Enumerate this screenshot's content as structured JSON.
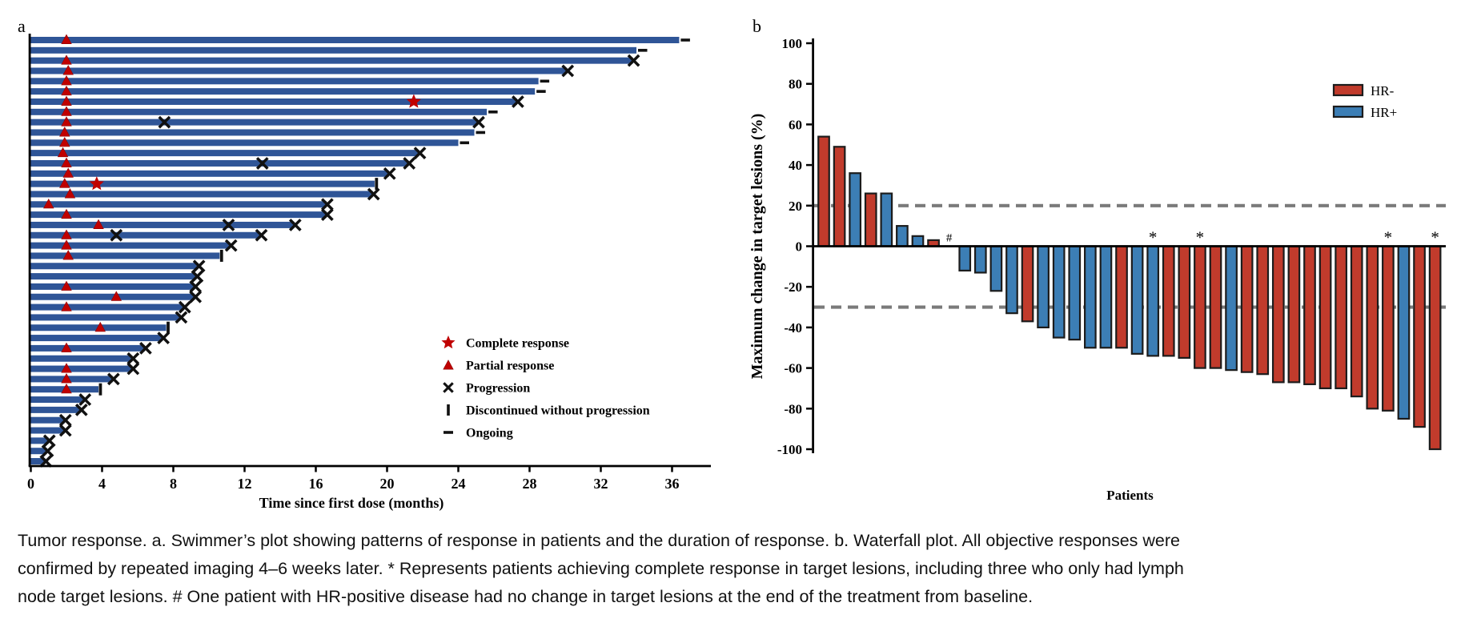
{
  "figure": {
    "panel_a_label": "a",
    "panel_b_label": "b",
    "caption_lines": [
      "Tumor response. a. Swimmer’s plot showing patterns of response in patients and the duration of response. b. Waterfall plot. All objective responses were",
      "confirmed by repeated imaging 4–6 weeks later. * Represents patients achieving complete response in target lesions, including three who only had lymph",
      "node target lesions. # One patient with HR-positive disease had no change in target lesions at the end of the treatment from baseline."
    ]
  },
  "colors": {
    "swimmer_bar": "#2f5597",
    "response_red": "#c00000",
    "hr_negative_red": "#c13b2c",
    "hr_positive_blue": "#3c7eb5",
    "marker_black": "#111111",
    "ref_line_gray": "#7a7a7a",
    "axis_black": "#000000"
  },
  "chart_data": [
    {
      "type": "swimmer",
      "xlabel": "Time since first dose (months)",
      "xticks": [
        0,
        4,
        8,
        12,
        16,
        20,
        24,
        28,
        32,
        36
      ],
      "xlim": [
        0,
        38
      ],
      "grid": false,
      "legend_position": "center-right",
      "legend": [
        {
          "marker": "star",
          "label": "Complete response"
        },
        {
          "marker": "triangle",
          "label": "Partial response"
        },
        {
          "marker": "x",
          "label": "Progression"
        },
        {
          "marker": "bar",
          "label": "Discontinued without progression"
        },
        {
          "marker": "dash",
          "label": "Ongoing"
        }
      ],
      "marker_meaning": {
        "star": "Complete response",
        "triangle": "Partial response",
        "x": "Progression",
        "bar": "Discontinued without progression",
        "dash": "Ongoing"
      },
      "patients": [
        {
          "duration": 36.4,
          "end": "ongoing",
          "triangles": [
            2.0
          ],
          "stars": [],
          "x_marks": []
        },
        {
          "duration": 34.0,
          "end": "ongoing",
          "triangles": [],
          "stars": [],
          "x_marks": []
        },
        {
          "duration": 33.8,
          "end": "x",
          "triangles": [
            2.0
          ],
          "stars": [],
          "x_marks": []
        },
        {
          "duration": 30.1,
          "end": "x",
          "triangles": [
            2.1
          ],
          "stars": [],
          "x_marks": []
        },
        {
          "duration": 28.5,
          "end": "ongoing",
          "triangles": [
            2.0
          ],
          "stars": [],
          "x_marks": []
        },
        {
          "duration": 28.3,
          "end": "ongoing",
          "triangles": [
            2.0
          ],
          "stars": [],
          "x_marks": []
        },
        {
          "duration": 27.3,
          "end": "x",
          "triangles": [
            2.0
          ],
          "stars": [
            21.5
          ],
          "x_marks": []
        },
        {
          "duration": 25.6,
          "end": "ongoing",
          "triangles": [
            2.0
          ],
          "stars": [],
          "x_marks": []
        },
        {
          "duration": 25.1,
          "end": "x",
          "triangles": [
            2.0
          ],
          "stars": [],
          "x_marks": [
            7.5
          ]
        },
        {
          "duration": 24.9,
          "end": "ongoing",
          "triangles": [
            1.9
          ],
          "stars": [],
          "x_marks": []
        },
        {
          "duration": 24.0,
          "end": "ongoing",
          "triangles": [
            1.9
          ],
          "stars": [],
          "x_marks": []
        },
        {
          "duration": 21.8,
          "end": "x",
          "triangles": [
            1.8
          ],
          "stars": [],
          "x_marks": []
        },
        {
          "duration": 21.2,
          "end": "x",
          "triangles": [
            2.0
          ],
          "stars": [],
          "x_marks": [
            13.0
          ]
        },
        {
          "duration": 20.1,
          "end": "x",
          "triangles": [
            2.1
          ],
          "stars": [],
          "x_marks": []
        },
        {
          "duration": 19.3,
          "end": "discontinued",
          "triangles": [
            1.9
          ],
          "stars": [
            3.7
          ],
          "x_marks": []
        },
        {
          "duration": 19.2,
          "end": "x",
          "triangles": [
            2.2
          ],
          "stars": [],
          "x_marks": []
        },
        {
          "duration": 16.6,
          "end": "x",
          "triangles": [
            1.0
          ],
          "stars": [],
          "x_marks": []
        },
        {
          "duration": 16.6,
          "end": "x",
          "triangles": [
            2.0
          ],
          "stars": [],
          "x_marks": []
        },
        {
          "duration": 14.8,
          "end": "x",
          "triangles": [
            3.8
          ],
          "stars": [],
          "x_marks": [
            11.1
          ]
        },
        {
          "duration": 12.9,
          "end": "x",
          "triangles": [
            2.0
          ],
          "stars": [],
          "x_marks": [
            4.8
          ]
        },
        {
          "duration": 11.2,
          "end": "x",
          "triangles": [
            2.0
          ],
          "stars": [],
          "x_marks": []
        },
        {
          "duration": 10.6,
          "end": "discontinued",
          "triangles": [
            2.1
          ],
          "stars": [],
          "x_marks": []
        },
        {
          "duration": 9.4,
          "end": "x",
          "triangles": [],
          "stars": [],
          "x_marks": []
        },
        {
          "duration": 9.3,
          "end": "x",
          "triangles": [],
          "stars": [],
          "x_marks": []
        },
        {
          "duration": 9.2,
          "end": "x",
          "triangles": [
            2.0
          ],
          "stars": [],
          "x_marks": []
        },
        {
          "duration": 9.2,
          "end": "x",
          "triangles": [
            4.8
          ],
          "stars": [],
          "x_marks": []
        },
        {
          "duration": 8.6,
          "end": "x",
          "triangles": [
            2.0
          ],
          "stars": [],
          "x_marks": []
        },
        {
          "duration": 8.4,
          "end": "x",
          "triangles": [],
          "stars": [],
          "x_marks": []
        },
        {
          "duration": 7.6,
          "end": "discontinued",
          "triangles": [
            3.9
          ],
          "stars": [],
          "x_marks": []
        },
        {
          "duration": 7.4,
          "end": "x",
          "triangles": [],
          "stars": [],
          "x_marks": []
        },
        {
          "duration": 6.4,
          "end": "x",
          "triangles": [
            2.0
          ],
          "stars": [],
          "x_marks": []
        },
        {
          "duration": 5.7,
          "end": "x",
          "triangles": [],
          "stars": [],
          "x_marks": []
        },
        {
          "duration": 5.7,
          "end": "x",
          "triangles": [
            2.0
          ],
          "stars": [],
          "x_marks": []
        },
        {
          "duration": 4.6,
          "end": "x",
          "triangles": [
            2.0
          ],
          "stars": [],
          "x_marks": []
        },
        {
          "duration": 3.8,
          "end": "discontinued",
          "triangles": [
            2.0
          ],
          "stars": [],
          "x_marks": []
        },
        {
          "duration": 3.0,
          "end": "x",
          "triangles": [],
          "stars": [],
          "x_marks": []
        },
        {
          "duration": 2.8,
          "end": "x",
          "triangles": [],
          "stars": [],
          "x_marks": []
        },
        {
          "duration": 1.9,
          "end": "x",
          "triangles": [],
          "stars": [],
          "x_marks": []
        },
        {
          "duration": 1.9,
          "end": "x",
          "triangles": [],
          "stars": [],
          "x_marks": []
        },
        {
          "duration": 1.0,
          "end": "x",
          "triangles": [],
          "stars": [],
          "x_marks": []
        },
        {
          "duration": 0.9,
          "end": "x",
          "triangles": [],
          "stars": [],
          "x_marks": []
        },
        {
          "duration": 0.8,
          "end": "x",
          "triangles": [],
          "stars": [],
          "x_marks": []
        }
      ]
    },
    {
      "type": "waterfall",
      "ylabel": "Maximum change in target lesions (%)",
      "xlabel": "Patients",
      "yticks": [
        100,
        80,
        60,
        40,
        20,
        0,
        -20,
        -40,
        -60,
        -80,
        -100
      ],
      "ylim": [
        -100,
        100
      ],
      "ref_lines": [
        20,
        -30
      ],
      "grid": false,
      "legend_position": "top-right",
      "legend": [
        {
          "label": "HR-",
          "color_key": "hr_negative_red"
        },
        {
          "label": "HR+",
          "color_key": "hr_positive_blue"
        }
      ],
      "values": [
        54,
        49,
        36,
        26,
        26,
        10,
        5,
        3,
        0,
        -12,
        -13,
        -22,
        -33,
        -37,
        -40,
        -45,
        -46,
        -50,
        -50,
        -50,
        -53,
        -54,
        -54,
        -55,
        -60,
        -60,
        -61,
        -62,
        -63,
        -67,
        -67,
        -68,
        -70,
        -70,
        -74,
        -80,
        -81,
        -85,
        -89,
        -100
      ],
      "hr_status": [
        "HR-",
        "HR-",
        "HR+",
        "HR-",
        "HR+",
        "HR+",
        "HR+",
        "HR-",
        "HR+",
        "HR+",
        "HR+",
        "HR+",
        "HR+",
        "HR-",
        "HR+",
        "HR+",
        "HR+",
        "HR+",
        "HR+",
        "HR-",
        "HR+",
        "HR+",
        "HR-",
        "HR-",
        "HR-",
        "HR-",
        "HR+",
        "HR-",
        "HR-",
        "HR-",
        "HR-",
        "HR-",
        "HR-",
        "HR-",
        "HR-",
        "HR-",
        "HR-",
        "HR+",
        "HR-",
        "HR-"
      ],
      "annotations": [
        {
          "index": 8,
          "symbol": "#"
        },
        {
          "index": 21,
          "symbol": "*"
        },
        {
          "index": 24,
          "symbol": "*"
        },
        {
          "index": 36,
          "symbol": "*"
        },
        {
          "index": 39,
          "symbol": "*"
        }
      ]
    }
  ]
}
